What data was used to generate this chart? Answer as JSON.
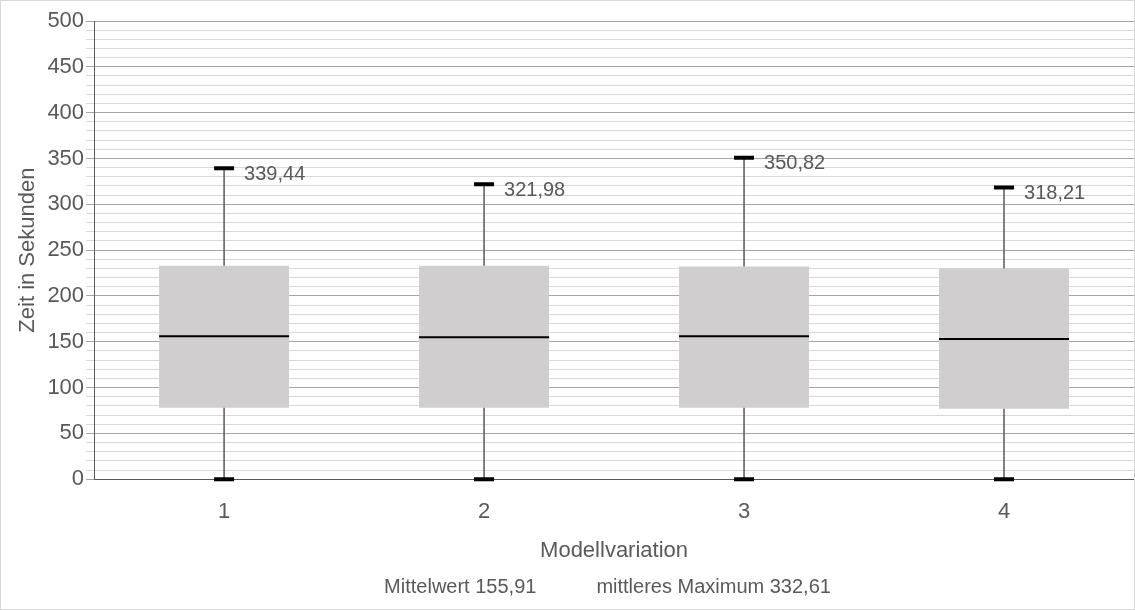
{
  "chart_data": {
    "type": "box",
    "xlabel": "Modellvariation",
    "ylabel": "Zeit in Sekunden",
    "categories": [
      "1",
      "2",
      "3",
      "4"
    ],
    "series": [
      {
        "color": "#d0cecf",
        "boxes": [
          {
            "low": 0,
            "q1": 78,
            "median": 156,
            "q3": 233,
            "high": 339.44
          },
          {
            "low": 0,
            "q1": 78,
            "median": 155,
            "q3": 233,
            "high": 321.98
          },
          {
            "low": 0,
            "q1": 78,
            "median": 156,
            "q3": 232,
            "high": 350.82
          },
          {
            "low": 0,
            "q1": 77,
            "median": 153,
            "q3": 230,
            "high": 318.21
          }
        ]
      }
    ],
    "ylim": [
      0,
      500
    ],
    "yticks": [
      0,
      {
        "value": 10,
        "label": null
      },
      {
        "value": 20,
        "label": null
      },
      {
        "value": 30,
        "label": null
      },
      {
        "value": 40,
        "label": null
      },
      50,
      {
        "value": 60,
        "label": null
      },
      {
        "value": 70,
        "label": null
      },
      {
        "value": 80,
        "label": null
      },
      {
        "value": 90,
        "label": null
      },
      100,
      {
        "value": 110,
        "label": null
      },
      {
        "value": 120,
        "label": null
      },
      {
        "value": 130,
        "label": null
      },
      {
        "value": 140,
        "label": null
      },
      150,
      {
        "value": 160,
        "label": null
      },
      {
        "value": 170,
        "label": null
      },
      {
        "value": 180,
        "label": null
      },
      {
        "value": 190,
        "label": null
      },
      200,
      {
        "value": 210,
        "label": null
      },
      {
        "value": 220,
        "label": null
      },
      {
        "value": 230,
        "label": null
      },
      {
        "value": 240,
        "label": null
      },
      250,
      {
        "value": 260,
        "label": null
      },
      {
        "value": 270,
        "label": null
      },
      {
        "value": 280,
        "label": null
      },
      {
        "value": 290,
        "label": null
      },
      300,
      {
        "value": 310,
        "label": null
      },
      {
        "value": 320,
        "label": null
      },
      {
        "value": 330,
        "label": null
      },
      {
        "value": 340,
        "label": null
      },
      350,
      {
        "value": 360,
        "label": null
      },
      {
        "value": 370,
        "label": null
      },
      {
        "value": 380,
        "label": null
      },
      {
        "value": 390,
        "label": null
      },
      400,
      {
        "value": 410,
        "label": null
      },
      {
        "value": 420,
        "label": null
      },
      {
        "value": 430,
        "label": null
      },
      {
        "value": 440,
        "label": null
      },
      450,
      {
        "value": 460,
        "label": null
      },
      {
        "value": 470,
        "label": null
      },
      {
        "value": 480,
        "label": null
      },
      {
        "value": 490,
        "label": null
      },
      500
    ],
    "grid": true,
    "annotations": [
      {
        "text": "339,44",
        "x": "1",
        "y": 339.44
      },
      {
        "text": "321,98",
        "x": "2",
        "y": 321.98
      },
      {
        "text": "350,82",
        "x": "3",
        "y": 350.82
      },
      {
        "text": "318,21",
        "x": "4",
        "y": 318.21
      },
      "Mittelwert 155,91",
      "mittleres Maximum 332,61"
    ]
  }
}
